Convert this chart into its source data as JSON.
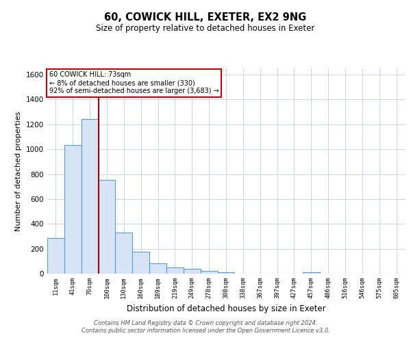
{
  "title": "60, COWICK HILL, EXETER, EX2 9NG",
  "subtitle": "Size of property relative to detached houses in Exeter",
  "xlabel": "Distribution of detached houses by size in Exeter",
  "ylabel": "Number of detached properties",
  "bin_labels": [
    "11sqm",
    "41sqm",
    "70sqm",
    "100sqm",
    "130sqm",
    "160sqm",
    "189sqm",
    "219sqm",
    "249sqm",
    "278sqm",
    "308sqm",
    "338sqm",
    "367sqm",
    "397sqm",
    "427sqm",
    "457sqm",
    "486sqm",
    "516sqm",
    "546sqm",
    "575sqm",
    "605sqm"
  ],
  "bar_heights": [
    285,
    1035,
    1245,
    755,
    330,
    175,
    85,
    50,
    38,
    22,
    12,
    0,
    0,
    0,
    0,
    10,
    0,
    0,
    0,
    0,
    0
  ],
  "bar_color": "#d6e4f5",
  "bar_edge_color": "#5b9bd5",
  "red_line_bar_index": 2,
  "marker_color": "#aa0000",
  "ylim": [
    0,
    1650
  ],
  "yticks": [
    0,
    200,
    400,
    600,
    800,
    1000,
    1200,
    1400,
    1600
  ],
  "annotation_text": "60 COWICK HILL: 73sqm\n← 8% of detached houses are smaller (330)\n92% of semi-detached houses are larger (3,683) →",
  "annotation_box_color": "#ffffff",
  "annotation_box_edge": "#cc0000",
  "footer_text": "Contains HM Land Registry data © Crown copyright and database right 2024.\nContains public sector information licensed under the Open Government Licence v3.0.",
  "bg_color": "#ffffff",
  "grid_color": "#c8d4e8"
}
